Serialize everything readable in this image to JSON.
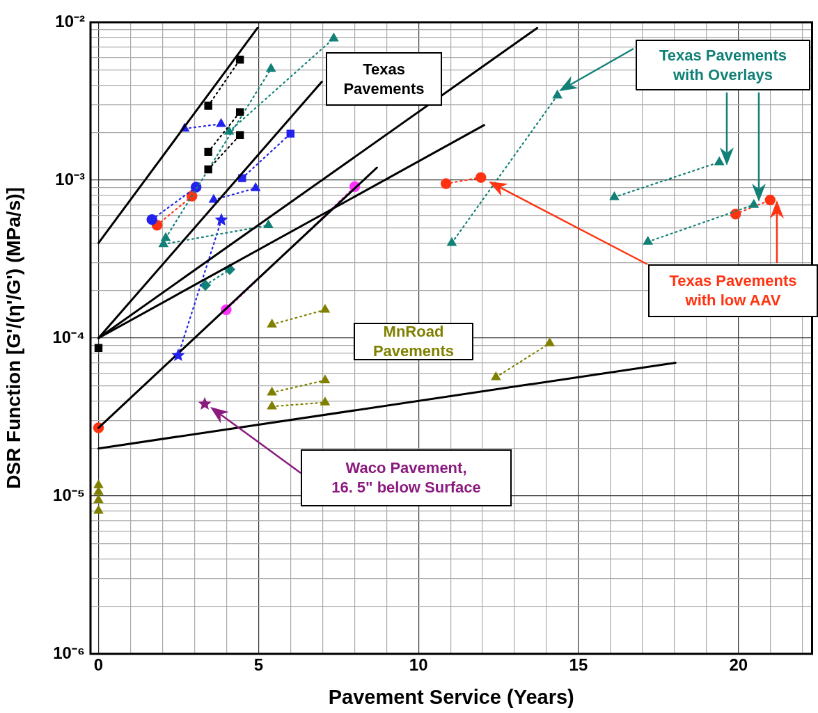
{
  "chart_data": {
    "type": "scatter",
    "xlabel": "Pavement Service (Years)",
    "ylabel": "DSR Function [G'/(η'/G') (MPa/s)]",
    "log": "y",
    "grid": true,
    "legend": false,
    "xlim": [
      -0.25,
      22.3
    ],
    "ylim": [
      1e-06,
      0.01
    ],
    "xticks": [
      0,
      {
        "value": 1,
        "label": null
      },
      {
        "value": 2,
        "label": null
      },
      {
        "value": 3,
        "label": null
      },
      {
        "value": 4,
        "label": null
      },
      5,
      {
        "value": 6,
        "label": null
      },
      {
        "value": 7,
        "label": null
      },
      {
        "value": 8,
        "label": null
      },
      {
        "value": 9,
        "label": null
      },
      10,
      {
        "value": 11,
        "label": null
      },
      {
        "value": 12,
        "label": null
      },
      {
        "value": 13,
        "label": null
      },
      {
        "value": 14,
        "label": null
      },
      15,
      {
        "value": 16,
        "label": null
      },
      {
        "value": 17,
        "label": null
      },
      {
        "value": 18,
        "label": null
      },
      {
        "value": 19,
        "label": null
      },
      20,
      {
        "value": 21,
        "label": null
      },
      {
        "value": 22,
        "label": null
      }
    ],
    "yticks": [
      {
        "value": 1e-06,
        "label": "10⁻⁶"
      },
      {
        "value": 2e-06,
        "label": null
      },
      {
        "value": 3e-06,
        "label": null
      },
      {
        "value": 4e-06,
        "label": null
      },
      {
        "value": 5e-06,
        "label": null
      },
      {
        "value": 6e-06,
        "label": null
      },
      {
        "value": 7e-06,
        "label": null
      },
      {
        "value": 8e-06,
        "label": null
      },
      {
        "value": 9e-06,
        "label": null
      },
      {
        "value": 1e-05,
        "label": "10⁻⁵"
      },
      {
        "value": 2e-05,
        "label": null
      },
      {
        "value": 3e-05,
        "label": null
      },
      {
        "value": 4e-05,
        "label": null
      },
      {
        "value": 5e-05,
        "label": null
      },
      {
        "value": 6e-05,
        "label": null
      },
      {
        "value": 7e-05,
        "label": null
      },
      {
        "value": 8e-05,
        "label": null
      },
      {
        "value": 9e-05,
        "label": null
      },
      {
        "value": 0.0001,
        "label": "10⁻⁴"
      },
      {
        "value": 0.0002,
        "label": null
      },
      {
        "value": 0.0003,
        "label": null
      },
      {
        "value": 0.0004,
        "label": null
      },
      {
        "value": 0.0005,
        "label": null
      },
      {
        "value": 0.0006,
        "label": null
      },
      {
        "value": 0.0007,
        "label": null
      },
      {
        "value": 0.0008,
        "label": null
      },
      {
        "value": 0.0009,
        "label": null
      },
      {
        "value": 0.001,
        "label": "10⁻³"
      },
      {
        "value": 0.002,
        "label": null
      },
      {
        "value": 0.003,
        "label": null
      },
      {
        "value": 0.004,
        "label": null
      },
      {
        "value": 0.005,
        "label": null
      },
      {
        "value": 0.006,
        "label": null
      },
      {
        "value": 0.007,
        "label": null
      },
      {
        "value": 0.008,
        "label": null
      },
      {
        "value": 0.009,
        "label": null
      },
      {
        "value": 0.01,
        "label": "10⁻²"
      }
    ],
    "series": [
      {
        "type": "line",
        "color": "#000000",
        "marker": "square",
        "line_style": "dotted",
        "x": [
          3.43,
          4.42
        ],
        "values": [
          0.00296,
          0.0058
        ]
      },
      {
        "type": "line",
        "color": "#000000",
        "marker": "square",
        "line_style": "dotted",
        "x": [
          3.43,
          4.42
        ],
        "values": [
          0.00151,
          0.0027
        ]
      },
      {
        "type": "line",
        "color": "#000000",
        "marker": "square",
        "line_style": "dotted",
        "x": [
          3.43,
          4.42
        ],
        "values": [
          0.00117,
          0.00193
        ]
      },
      {
        "type": "line",
        "color": "#2222ee",
        "marker": "triangle",
        "line_style": "dotted",
        "x": [
          2.69,
          3.83
        ],
        "values": [
          0.00212,
          0.00227
        ]
      },
      {
        "type": "line",
        "color": "#118077",
        "marker": "triangle",
        "line_style": "dotted",
        "x": [
          4.08,
          7.35
        ],
        "values": [
          0.00203,
          0.0079
        ]
      },
      {
        "type": "line",
        "color": "#118077",
        "marker": "triangle",
        "line_style": "dotted",
        "x": [
          2.1,
          5.39
        ],
        "values": [
          0.00043,
          0.00507
        ]
      },
      {
        "type": "line",
        "color": "#118077",
        "marker": "triangle",
        "line_style": "dotted",
        "x": [
          2.03,
          5.31
        ],
        "values": [
          0.000393,
          0.000518
        ]
      },
      {
        "type": "line",
        "color": "#2222ee",
        "marker": "circle",
        "line_style": "dotted",
        "x": [
          1.67,
          3.05
        ],
        "values": [
          0.000563,
          0.000903
        ]
      },
      {
        "type": "line",
        "color": "#ff3311",
        "marker": "circle",
        "line_style": "dotted",
        "x": [
          1.83,
          2.92
        ],
        "values": [
          0.000519,
          0.000792
        ]
      },
      {
        "type": "line",
        "color": "#2222ee",
        "marker": "square",
        "line_style": "dotted",
        "x": [
          4.49,
          6.0
        ],
        "values": [
          0.00103,
          0.00197
        ]
      },
      {
        "type": "line",
        "color": "#2222ee",
        "marker": "triangle",
        "line_style": "dotted",
        "x": [
          3.6,
          4.91
        ],
        "values": [
          0.00075,
          0.00089
        ]
      },
      {
        "type": "line",
        "color": "#2222ee",
        "marker": "star",
        "line_style": "dotted",
        "x": [
          2.49,
          3.84
        ],
        "values": [
          7.76e-05,
          0.00056
        ]
      },
      {
        "type": "line",
        "color": "#ff33ff",
        "marker": "circle",
        "line_style": "dotted",
        "x": [
          3.99,
          8.01
        ],
        "values": [
          0.000151,
          0.00091
        ]
      },
      {
        "type": "line",
        "color": "#118077",
        "marker": "diamond",
        "line_style": "dotted",
        "x": [
          3.34,
          4.1
        ],
        "values": [
          0.000216,
          0.000272
        ]
      },
      {
        "type": "scatter",
        "color": "#000000",
        "marker": "square",
        "x": [
          0
        ],
        "values": [
          8.65e-05
        ]
      },
      {
        "type": "scatter",
        "color": "#ff3311",
        "marker": "circle",
        "x": [
          0
        ],
        "values": [
          2.7e-05
        ]
      },
      {
        "type": "scatter",
        "color": "#8b1a7f",
        "marker": "star",
        "x": [
          3.32
        ],
        "values": [
          3.82e-05
        ]
      },
      {
        "type": "line",
        "color": "#808000",
        "marker": "triangle",
        "line_style": "dotted",
        "x": [
          5.42,
          7.08
        ],
        "values": [
          0.000122,
          0.000151
        ]
      },
      {
        "type": "line",
        "color": "#808000",
        "marker": "triangle",
        "line_style": "dotted",
        "x": [
          5.42,
          7.08
        ],
        "values": [
          4.52e-05,
          5.4e-05
        ]
      },
      {
        "type": "line",
        "color": "#808000",
        "marker": "triangle",
        "line_style": "dotted",
        "x": [
          5.42,
          7.08
        ],
        "values": [
          3.69e-05,
          3.91e-05
        ]
      },
      {
        "type": "line",
        "color": "#808000",
        "marker": "triangle",
        "line_style": "dotted",
        "x": [
          12.42,
          14.1
        ],
        "values": [
          5.65e-05,
          9.27e-05
        ]
      },
      {
        "type": "scatter",
        "color": "#808000",
        "marker": "triangle",
        "x": [
          0,
          0,
          0,
          0
        ],
        "values": [
          1.17e-05,
          1.06e-05,
          9.4e-06,
          8.07e-06
        ]
      },
      {
        "type": "line",
        "color": "#ff3311",
        "marker": "circle",
        "line_style": "dotted",
        "x": [
          10.86,
          11.95
        ],
        "values": [
          0.00095,
          0.00104
        ]
      },
      {
        "type": "line",
        "color": "#118077",
        "marker": "triangle",
        "line_style": "dotted",
        "x": [
          11.04,
          14.34
        ],
        "values": [
          0.0004,
          0.00344
        ]
      },
      {
        "type": "line",
        "color": "#118077",
        "marker": "triangle",
        "line_style": "dotted",
        "x": [
          16.12,
          19.4
        ],
        "values": [
          0.00078,
          0.0013
        ]
      },
      {
        "type": "line",
        "color": "#118077",
        "marker": "triangle",
        "line_style": "dotted",
        "x": [
          17.17,
          20.48
        ],
        "values": [
          0.000407,
          0.000698
        ]
      },
      {
        "type": "line",
        "color": "#ff3311",
        "marker": "circle",
        "line_style": "dotted",
        "x": [
          19.91,
          20.99
        ],
        "values": [
          0.00061,
          0.000748
        ]
      },
      {
        "type": "line",
        "color": "#000000",
        "marker": "none",
        "line_style": "solid",
        "x": [
          0,
          4.97
        ],
        "values": [
          0.0004,
          0.0092
        ]
      },
      {
        "type": "line",
        "color": "#000000",
        "marker": "none",
        "line_style": "solid",
        "x": [
          0,
          6.98
        ],
        "values": [
          0.0001,
          0.0042
        ]
      },
      {
        "type": "line",
        "color": "#000000",
        "marker": "none",
        "line_style": "solid",
        "x": [
          0,
          13.71
        ],
        "values": [
          0.0001,
          0.0092
        ]
      },
      {
        "type": "line",
        "color": "#000000",
        "marker": "none",
        "line_style": "solid",
        "x": [
          0,
          12.05
        ],
        "values": [
          0.0001,
          0.00223
        ]
      },
      {
        "type": "line",
        "color": "#000000",
        "marker": "none",
        "line_style": "solid",
        "x": [
          0,
          8.7
        ],
        "values": [
          2.7e-05,
          0.0012
        ]
      },
      {
        "type": "line",
        "color": "#000000",
        "marker": "none",
        "line_style": "solid",
        "x": [
          0,
          18.03
        ],
        "values": [
          2e-05,
          6.98e-05
        ]
      }
    ],
    "annotations": [
      "Texas\nPavements",
      "Texas Pavements\nwith Overlays",
      "Texas Pavements\nwith low AAV",
      "MnRoad\nPavements",
      "Waco Pavement,\n16. 5\" below Surface"
    ]
  }
}
